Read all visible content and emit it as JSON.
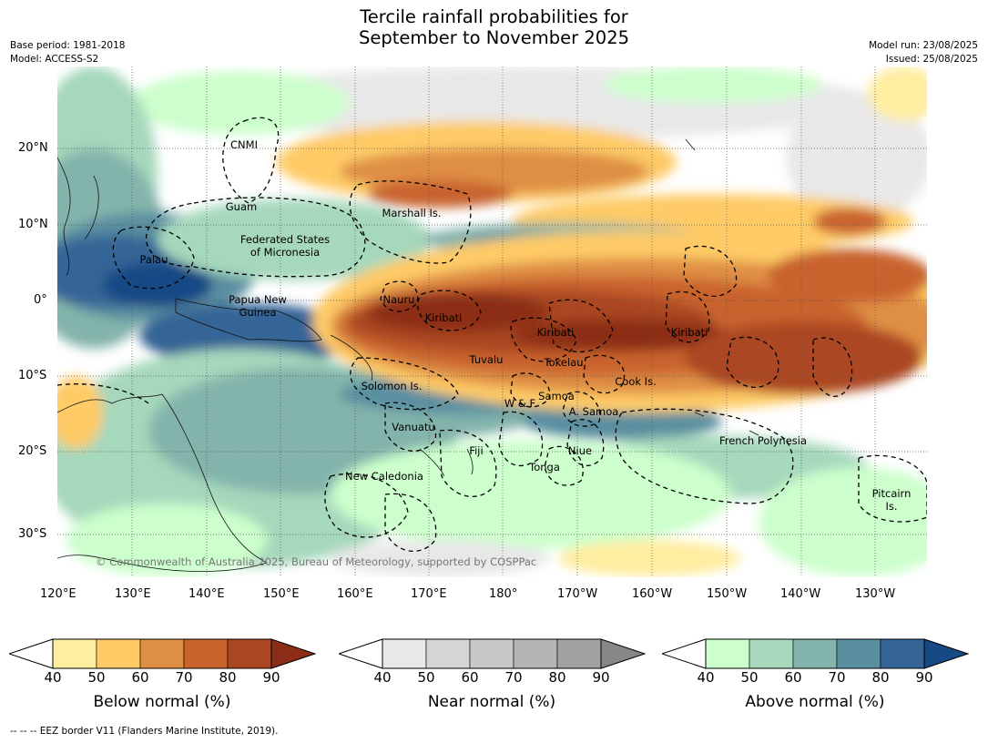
{
  "title": {
    "line1": "Tercile rainfall probabilities for",
    "line2": "September to November 2025"
  },
  "meta": {
    "base_period": "Base period: 1981-2018",
    "model": "Model: ACCESS-S2",
    "model_run": "Model run: 23/08/2025",
    "issued": "Issued: 25/08/2025"
  },
  "colors": {
    "below": [
      "#ffeda0",
      "#fecb66",
      "#df8f44",
      "#c9642d",
      "#ab4722",
      "#8c2d18"
    ],
    "near": [
      "#e8e8e8",
      "#d5d5d5",
      "#c8c8c8",
      "#b5b5b5",
      "#a2a2a2",
      "#888888"
    ],
    "above": [
      "#ccffcc",
      "#a6d8bc",
      "#83b4ab",
      "#5a8fa0",
      "#346596",
      "#154a85"
    ]
  },
  "map": {
    "lat_labels": [
      "20°N",
      "10°N",
      "0°",
      "10°S",
      "20°S",
      "30°S"
    ],
    "lon_labels": [
      "120°E",
      "130°E",
      "140°E",
      "150°E",
      "160°E",
      "170°E",
      "180°",
      "170°W",
      "160°W",
      "150°W",
      "140°W",
      "130°W"
    ],
    "regions": [
      "CNMI",
      "Guam",
      "Marshall Is.",
      "Federated States",
      "of Micronesia",
      "Palau",
      "Papua New",
      "Guinea",
      "Nauru",
      "Kiribati",
      "Kiribati",
      "Kiribati",
      "Tuvalu",
      "Tokelau",
      "Solomon Is.",
      "Samoa",
      "W & F",
      "A. Samoa",
      "Cook Is.",
      "Vanuatu",
      "Fiji",
      "Niue",
      "Tonga",
      "French Polynesia",
      "New Caledonia",
      "Pitcairn",
      "Is."
    ],
    "copyright": "© Commonwealth of Australia 2025, Bureau of Meteorology, supported by COSPPac"
  },
  "colorbars": {
    "ticks": [
      "40",
      "50",
      "60",
      "70",
      "80",
      "90"
    ],
    "below_title": "Below normal (%)",
    "near_title": "Near normal (%)",
    "above_title": "Above normal (%)"
  },
  "footnote": "--  --  -- EEZ border V11 (Flanders Marine Institute, 2019)."
}
